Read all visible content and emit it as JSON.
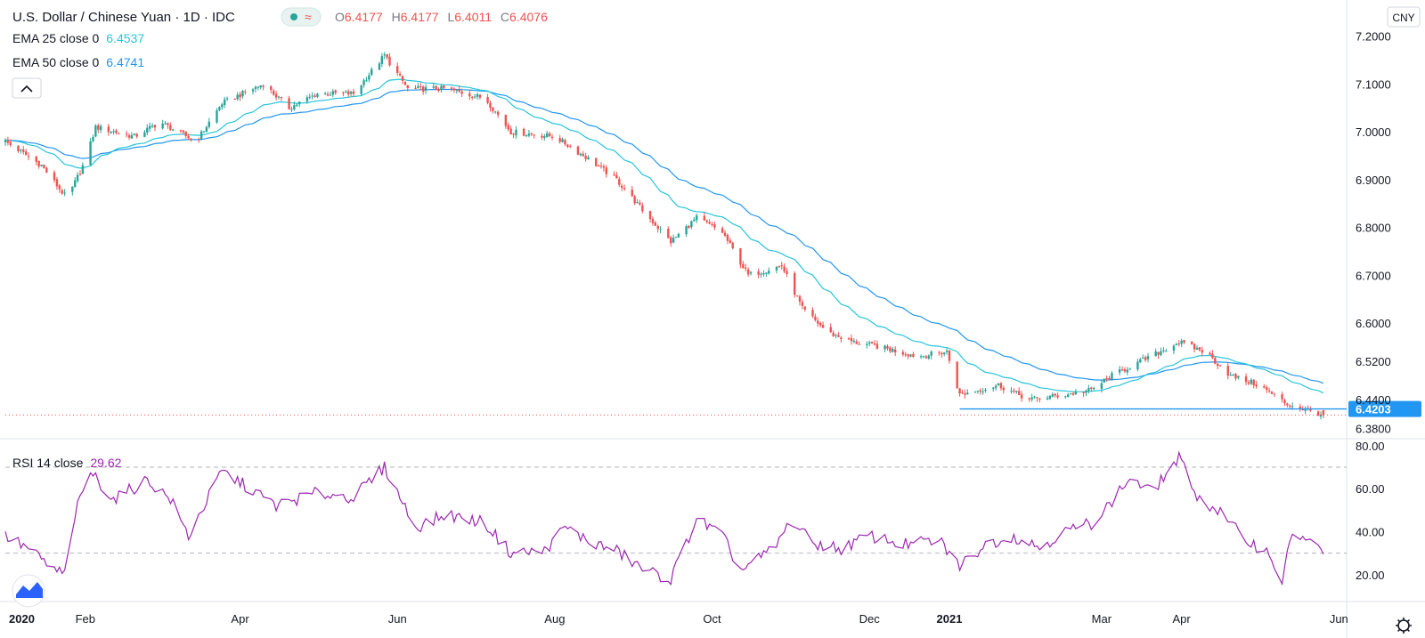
{
  "header": {
    "title": "U.S. Dollar / Chinese Yuan · 1D · IDC",
    "ohlc": {
      "o_label": "O",
      "o_value": "6.4177",
      "h_label": "H",
      "h_value": "6.4177",
      "l_label": "L",
      "l_value": "6.4011",
      "c_label": "C",
      "c_value": "6.4076"
    },
    "currency_badge": "CNY"
  },
  "indicators": {
    "ema25": {
      "label": "EMA 25 close 0",
      "value": "6.4537",
      "color": "#26c6da"
    },
    "ema50": {
      "label": "EMA 50 close 0",
      "value": "6.4741",
      "color": "#2196f3"
    },
    "rsi": {
      "label": "RSI 14 close",
      "value": "29.62",
      "color": "#9c27b0"
    }
  },
  "colors": {
    "up": "#26a69a",
    "down": "#ef5350",
    "support_line": "#2196f3",
    "price_line": "#ef5350"
  },
  "chart_data": [
    {
      "type": "candlestick",
      "title": "U.S. Dollar / Chinese Yuan · 1D · IDC",
      "ylim": [
        6.36,
        7.22
      ],
      "y_ticks": [
        "7.2000",
        "7.1000",
        "7.0000",
        "6.9000",
        "6.8000",
        "6.7000",
        "6.6000",
        "6.5200",
        "6.4400",
        "6.3800"
      ],
      "x_ticks": [
        "2020",
        "Feb",
        "Apr",
        "Jun",
        "Aug",
        "Oct",
        "Dec",
        "2021",
        "Mar",
        "Apr",
        "Jun"
      ],
      "close_anchors": [
        [
          "2020-01-01",
          6.98
        ],
        [
          "2020-01-15",
          6.93
        ],
        [
          "2020-01-25",
          6.86
        ],
        [
          "2020-02-01",
          6.94
        ],
        [
          "2020-02-05",
          7.01
        ],
        [
          "2020-02-20",
          6.99
        ],
        [
          "2020-03-01",
          7.02
        ],
        [
          "2020-03-15",
          6.98
        ],
        [
          "2020-03-25",
          7.06
        ],
        [
          "2020-04-10",
          7.1
        ],
        [
          "2020-04-20",
          7.05
        ],
        [
          "2020-05-01",
          7.08
        ],
        [
          "2020-05-15",
          7.08
        ],
        [
          "2020-05-27",
          7.16
        ],
        [
          "2020-06-05",
          7.09
        ],
        [
          "2020-06-20",
          7.09
        ],
        [
          "2020-07-05",
          7.07
        ],
        [
          "2020-07-15",
          7.0
        ],
        [
          "2020-08-01",
          6.99
        ],
        [
          "2020-08-15",
          6.94
        ],
        [
          "2020-08-25",
          6.9
        ],
        [
          "2020-09-05",
          6.83
        ],
        [
          "2020-09-15",
          6.77
        ],
        [
          "2020-09-25",
          6.82
        ],
        [
          "2020-10-05",
          6.79
        ],
        [
          "2020-10-15",
          6.7
        ],
        [
          "2020-10-28",
          6.72
        ],
        [
          "2020-11-05",
          6.63
        ],
        [
          "2020-11-15",
          6.58
        ],
        [
          "2020-11-25",
          6.56
        ],
        [
          "2020-12-05",
          6.55
        ],
        [
          "2020-12-20",
          6.53
        ],
        [
          "2020-12-31",
          6.54
        ],
        [
          "2021-01-05",
          6.45
        ],
        [
          "2021-01-20",
          6.47
        ],
        [
          "2021-02-01",
          6.44
        ],
        [
          "2021-02-15",
          6.45
        ],
        [
          "2021-02-25",
          6.46
        ],
        [
          "2021-03-05",
          6.49
        ],
        [
          "2021-03-20",
          6.53
        ],
        [
          "2021-03-31",
          6.56
        ],
        [
          "2021-04-10",
          6.54
        ],
        [
          "2021-04-20",
          6.49
        ],
        [
          "2021-05-01",
          6.47
        ],
        [
          "2021-05-12",
          6.43
        ],
        [
          "2021-05-25",
          6.41
        ]
      ],
      "ema25_last": 6.4537,
      "ema50_last": 6.4741,
      "support_level": {
        "value": 6.4203,
        "label": "6.4203",
        "from": "2021-01-05"
      },
      "last_close": 6.4076,
      "last_bar": {
        "date": "2021-05-26",
        "open": 6.4177,
        "high": 6.4177,
        "low": 6.4011,
        "close": 6.4076
      }
    },
    {
      "type": "line",
      "title": "RSI 14 close",
      "ylim": [
        10,
        82
      ],
      "y_ticks": [
        "80.00",
        "60.00",
        "40.00",
        "20.00"
      ],
      "bands": [
        70,
        30
      ],
      "last_value": 29.62,
      "anchors": [
        [
          "2020-01-01",
          38
        ],
        [
          "2020-01-10",
          32
        ],
        [
          "2020-01-20",
          22
        ],
        [
          "2020-01-25",
          20
        ],
        [
          "2020-01-28",
          48
        ],
        [
          "2020-02-03",
          68
        ],
        [
          "2020-02-12",
          55
        ],
        [
          "2020-02-25",
          64
        ],
        [
          "2020-03-05",
          55
        ],
        [
          "2020-03-12",
          38
        ],
        [
          "2020-03-25",
          68
        ],
        [
          "2020-04-05",
          60
        ],
        [
          "2020-04-15",
          52
        ],
        [
          "2020-05-01",
          58
        ],
        [
          "2020-05-15",
          56
        ],
        [
          "2020-05-27",
          70
        ],
        [
          "2020-06-08",
          42
        ],
        [
          "2020-06-20",
          48
        ],
        [
          "2020-07-05",
          44
        ],
        [
          "2020-07-15",
          30
        ],
        [
          "2020-07-28",
          31
        ],
        [
          "2020-08-05",
          42
        ],
        [
          "2020-08-15",
          35
        ],
        [
          "2020-08-25",
          31
        ],
        [
          "2020-09-05",
          22
        ],
        [
          "2020-09-15",
          18
        ],
        [
          "2020-09-25",
          46
        ],
        [
          "2020-10-05",
          38
        ],
        [
          "2020-10-12",
          22
        ],
        [
          "2020-10-25",
          32
        ],
        [
          "2020-11-01",
          46
        ],
        [
          "2020-11-08",
          35
        ],
        [
          "2020-11-20",
          32
        ],
        [
          "2020-12-01",
          38
        ],
        [
          "2020-12-15",
          34
        ],
        [
          "2020-12-28",
          36
        ],
        [
          "2021-01-05",
          24
        ],
        [
          "2021-01-15",
          34
        ],
        [
          "2021-01-25",
          38
        ],
        [
          "2021-02-05",
          33
        ],
        [
          "2021-02-15",
          40
        ],
        [
          "2021-02-25",
          44
        ],
        [
          "2021-03-05",
          54
        ],
        [
          "2021-03-12",
          65
        ],
        [
          "2021-03-20",
          58
        ],
        [
          "2021-03-31",
          74
        ],
        [
          "2021-04-08",
          55
        ],
        [
          "2021-04-15",
          50
        ],
        [
          "2021-04-25",
          37
        ],
        [
          "2021-05-05",
          30
        ],
        [
          "2021-05-10",
          17
        ],
        [
          "2021-05-14",
          40
        ],
        [
          "2021-05-20",
          36
        ],
        [
          "2021-05-26",
          29.62
        ]
      ]
    }
  ]
}
